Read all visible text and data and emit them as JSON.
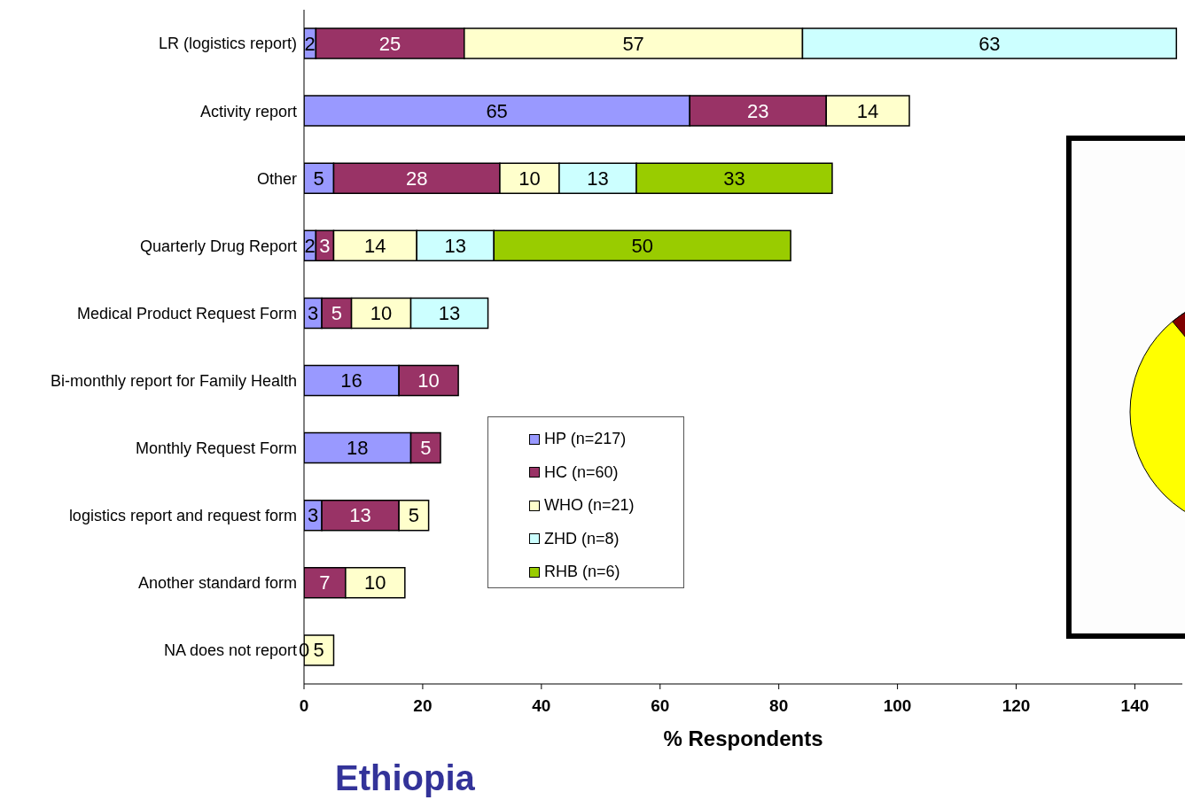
{
  "chart_data": {
    "type": "bar",
    "orientation": "horizontal",
    "stacked": true,
    "title": "Ethiopia",
    "xlabel": "% Respondents",
    "categories": [
      "LR (logistics report)",
      "Activity report",
      "Other",
      "Quarterly Drug Report",
      "Medical Product Request Form",
      "Bi-monthly report for Family Health",
      "Monthly Request Form",
      "logistics report and request form",
      "Another standard form",
      "NA does not report"
    ],
    "series": [
      {
        "name": "HP (n=217)",
        "color": "#9999ff",
        "values": [
          2,
          65,
          5,
          2,
          3,
          16,
          18,
          3,
          null,
          0
        ]
      },
      {
        "name": "HC (n=60)",
        "color": "#993366",
        "values": [
          25,
          23,
          28,
          3,
          5,
          10,
          5,
          13,
          7,
          null
        ]
      },
      {
        "name": "WHO (n=21)",
        "color": "#ffffcc",
        "values": [
          57,
          14,
          10,
          14,
          10,
          null,
          null,
          5,
          10,
          5
        ]
      },
      {
        "name": "ZHD (n=8)",
        "color": "#ccffff",
        "values": [
          63,
          null,
          13,
          13,
          13,
          null,
          null,
          null,
          null,
          null
        ]
      },
      {
        "name": "RHB (n=6)",
        "color": "#99cc00",
        "values": [
          null,
          null,
          33,
          50,
          null,
          null,
          null,
          null,
          null,
          null
        ]
      }
    ],
    "xlim": [
      0,
      148
    ],
    "xticks": [
      0,
      20,
      40,
      60,
      80,
      100,
      120,
      140
    ],
    "grid": false,
    "legend": "bottom left",
    "data_labels": true
  }
}
